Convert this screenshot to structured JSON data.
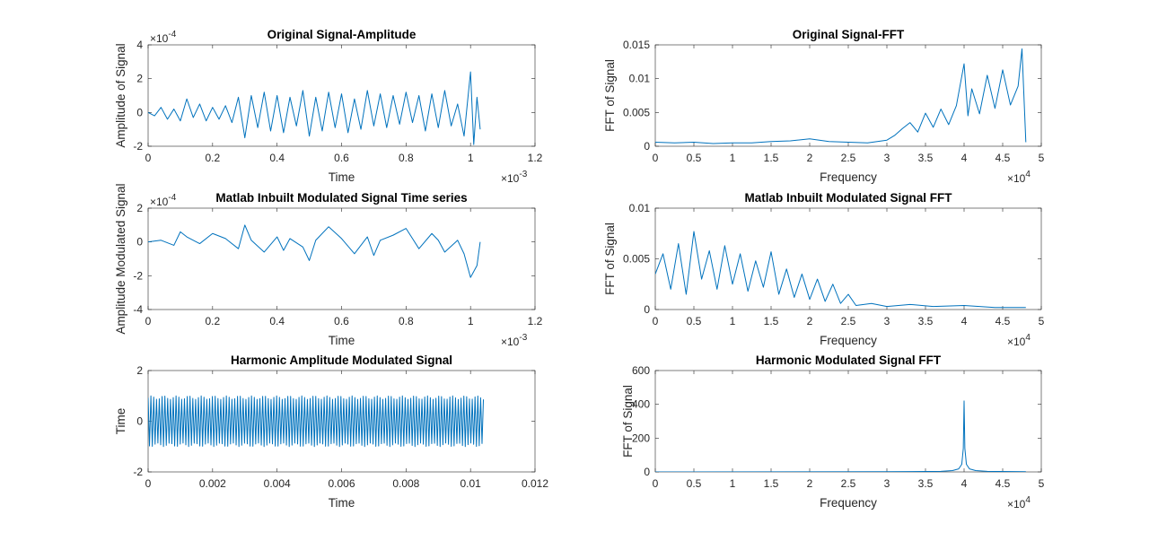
{
  "figure": {
    "background": "#ffffff",
    "line_color": "#0072BD",
    "axis_color": "#262626"
  },
  "chart_data": [
    {
      "id": "p1",
      "type": "line",
      "title": "Original Signal-Amplitude",
      "xlabel": "Time",
      "ylabel": "Amplitude of Signal",
      "xlim": [
        0,
        0.0012
      ],
      "ylim": [
        -0.0002,
        0.0004
      ],
      "xticks": [
        0,
        0.0002,
        0.0004,
        0.0006,
        0.0008,
        0.001,
        0.0012
      ],
      "xticklabels": [
        "0",
        "0.2",
        "0.4",
        "0.6",
        "0.8",
        "1",
        "1.2"
      ],
      "yticks": [
        -0.0002,
        0,
        0.0002,
        0.0004
      ],
      "yticklabels": [
        "-2",
        "0",
        "2",
        "4"
      ],
      "x_exponent": "10^-3",
      "y_exponent": "10^-4",
      "series": [
        {
          "x": [
            0,
            2e-05,
            4e-05,
            6e-05,
            8e-05,
            0.0001,
            0.00012,
            0.00014,
            0.00016,
            0.00018,
            0.0002,
            0.00022,
            0.00024,
            0.00026,
            0.00028,
            0.0003,
            0.00032,
            0.00034,
            0.00036,
            0.00038,
            0.0004,
            0.00042,
            0.00044,
            0.00046,
            0.00048,
            0.0005,
            0.00052,
            0.00054,
            0.00056,
            0.00058,
            0.0006,
            0.00062,
            0.00064,
            0.00066,
            0.00068,
            0.0007,
            0.00072,
            0.00074,
            0.00076,
            0.00078,
            0.0008,
            0.00082,
            0.00084,
            0.00086,
            0.00088,
            0.0009,
            0.00092,
            0.00094,
            0.00096,
            0.00098,
            0.001,
            0.00101,
            0.00102,
            0.00103
          ],
          "y": [
            0,
            -2e-05,
            3e-05,
            -4e-05,
            2e-05,
            -5e-05,
            8e-05,
            -3e-05,
            5e-05,
            -5e-05,
            3e-05,
            -4e-05,
            4e-05,
            -6e-05,
            9e-05,
            -0.00015,
            0.0001,
            -9e-05,
            0.00012,
            -0.00011,
            0.0001,
            -0.00012,
            9e-05,
            -8e-05,
            0.00013,
            -0.00014,
            9e-05,
            -0.00011,
            0.00012,
            -9e-05,
            0.00011,
            -0.00012,
            8e-05,
            -0.0001,
            0.00013,
            -8e-05,
            0.00011,
            -9e-05,
            0.0001,
            -7e-05,
            0.00012,
            -6e-05,
            0.0001,
            -0.00011,
            0.00011,
            -9e-05,
            0.00013,
            -8e-05,
            5e-05,
            -0.00014,
            0.00024,
            -0.00019,
            9e-05,
            -0.0001
          ]
        }
      ]
    },
    {
      "id": "p2",
      "type": "line",
      "title": "Original Signal-FFT",
      "xlabel": "Frequency",
      "ylabel": "FFT of Signal",
      "xlim": [
        0,
        50000
      ],
      "ylim": [
        0,
        0.015
      ],
      "xticks": [
        0,
        5000,
        10000,
        15000,
        20000,
        25000,
        30000,
        35000,
        40000,
        45000,
        50000
      ],
      "xticklabels": [
        "0",
        "0.5",
        "1",
        "1.5",
        "2",
        "2.5",
        "3",
        "3.5",
        "4",
        "4.5",
        "5"
      ],
      "yticks": [
        0,
        0.005,
        0.01,
        0.015
      ],
      "yticklabels": [
        "0",
        "0.005",
        "0.01",
        "0.015"
      ],
      "x_exponent": "10^4",
      "series": [
        {
          "x": [
            0,
            2500,
            5000,
            7500,
            10000,
            12500,
            15000,
            17500,
            20000,
            22500,
            25000,
            27500,
            30000,
            31000,
            32000,
            33000,
            34000,
            35000,
            36000,
            37000,
            38000,
            39000,
            40000,
            40500,
            41000,
            42000,
            43000,
            44000,
            45000,
            46000,
            47000,
            47500,
            48000
          ],
          "y": [
            0.0006,
            0.0005,
            0.0006,
            0.0004,
            0.0005,
            0.0005,
            0.0007,
            0.0008,
            0.0011,
            0.0007,
            0.0006,
            0.0005,
            0.0009,
            0.0016,
            0.0026,
            0.0035,
            0.0021,
            0.0049,
            0.0028,
            0.0055,
            0.0032,
            0.006,
            0.0122,
            0.0045,
            0.0085,
            0.0048,
            0.0105,
            0.0056,
            0.0113,
            0.0061,
            0.0089,
            0.0144,
            0.0006
          ]
        }
      ]
    },
    {
      "id": "p3",
      "type": "line",
      "title": "Matlab Inbuilt Modulated Signal Time series",
      "xlabel": "Time",
      "ylabel": "Amplitude Modulated Signal",
      "xlim": [
        0,
        0.0012
      ],
      "ylim": [
        -0.0004,
        0.0002
      ],
      "xticks": [
        0,
        0.0002,
        0.0004,
        0.0006,
        0.0008,
        0.001,
        0.0012
      ],
      "xticklabels": [
        "0",
        "0.2",
        "0.4",
        "0.6",
        "0.8",
        "1",
        "1.2"
      ],
      "yticks": [
        -0.0004,
        -0.0002,
        0,
        0.0002
      ],
      "yticklabels": [
        "-4",
        "-2",
        "0",
        "2"
      ],
      "x_exponent": "10^-3",
      "y_exponent": "10^-4",
      "series": [
        {
          "x": [
            0,
            4e-05,
            8e-05,
            0.0001,
            0.00012,
            0.00016,
            0.0002,
            0.00024,
            0.00028,
            0.0003,
            0.00032,
            0.00036,
            0.0004,
            0.00042,
            0.00044,
            0.00048,
            0.0005,
            0.00052,
            0.00056,
            0.0006,
            0.00064,
            0.00068,
            0.0007,
            0.00072,
            0.00076,
            0.0008,
            0.00082,
            0.00084,
            0.00088,
            0.0009,
            0.00092,
            0.00096,
            0.00098,
            0.001,
            0.00102,
            0.00103
          ],
          "y": [
            0,
            1e-05,
            -2e-05,
            6e-05,
            3e-05,
            -1e-05,
            5e-05,
            2e-05,
            -4e-05,
            0.0001,
            1e-05,
            -6e-05,
            3e-05,
            -5e-05,
            2e-05,
            -3e-05,
            -0.00011,
            1e-05,
            9e-05,
            2e-05,
            -7e-05,
            3e-05,
            -8e-05,
            1e-05,
            4e-05,
            8e-05,
            2e-05,
            -4e-05,
            5e-05,
            1e-05,
            -6e-05,
            1e-05,
            -7e-05,
            -0.00021,
            -0.00014,
            0
          ]
        }
      ]
    },
    {
      "id": "p4",
      "type": "line",
      "title": "Matlab Inbuilt Modulated Signal FFT",
      "xlabel": "Frequency",
      "ylabel": "FFT of Signal",
      "xlim": [
        0,
        50000
      ],
      "ylim": [
        0,
        0.01
      ],
      "xticks": [
        0,
        5000,
        10000,
        15000,
        20000,
        25000,
        30000,
        35000,
        40000,
        45000,
        50000
      ],
      "xticklabels": [
        "0",
        "0.5",
        "1",
        "1.5",
        "2",
        "2.5",
        "3",
        "3.5",
        "4",
        "4.5",
        "5"
      ],
      "yticks": [
        0,
        0.005,
        0.01
      ],
      "yticklabels": [
        "0",
        "0.005",
        "0.01"
      ],
      "x_exponent": "10^4",
      "series": [
        {
          "x": [
            0,
            1000,
            2000,
            3000,
            4000,
            5000,
            6000,
            7000,
            8000,
            9000,
            10000,
            11000,
            12000,
            13000,
            14000,
            15000,
            16000,
            17000,
            18000,
            19000,
            20000,
            21000,
            22000,
            23000,
            24000,
            25000,
            26000,
            28000,
            30000,
            33000,
            36000,
            40000,
            44000,
            48000
          ],
          "y": [
            0.0035,
            0.0055,
            0.002,
            0.0065,
            0.0015,
            0.0077,
            0.003,
            0.0058,
            0.002,
            0.0063,
            0.0025,
            0.0055,
            0.0018,
            0.0048,
            0.0022,
            0.0057,
            0.0015,
            0.004,
            0.0012,
            0.0035,
            0.001,
            0.003,
            0.0008,
            0.0025,
            0.0006,
            0.0015,
            0.0004,
            0.0006,
            0.0003,
            0.0005,
            0.0003,
            0.0004,
            0.0002,
            0.0002
          ]
        }
      ]
    },
    {
      "id": "p5",
      "type": "line",
      "title": "Harmonic Amplitude Modulated Signal",
      "xlabel": "Time",
      "ylabel": "Time",
      "xlim": [
        0,
        0.012
      ],
      "ylim": [
        -2,
        2
      ],
      "xticks": [
        0,
        0.002,
        0.004,
        0.006,
        0.008,
        0.01,
        0.012
      ],
      "xticklabels": [
        "0",
        "0.002",
        "0.004",
        "0.006",
        "0.008",
        "0.01",
        "0.012"
      ],
      "yticks": [
        -2,
        0,
        2
      ],
      "yticklabels": [
        "-2",
        "0",
        "2"
      ],
      "series": [
        {
          "x_range": [
            0,
            0.0104
          ],
          "amplitude": 1,
          "cycles": 120
        }
      ]
    },
    {
      "id": "p6",
      "type": "line",
      "title": "Harmonic Modulated Signal FFT",
      "xlabel": "Frequency",
      "ylabel": "FFT of Signal",
      "xlim": [
        0,
        50000
      ],
      "ylim": [
        0,
        600
      ],
      "xticks": [
        0,
        5000,
        10000,
        15000,
        20000,
        25000,
        30000,
        35000,
        40000,
        45000,
        50000
      ],
      "xticklabels": [
        "0",
        "0.5",
        "1",
        "1.5",
        "2",
        "2.5",
        "3",
        "3.5",
        "4",
        "4.5",
        "5"
      ],
      "yticks": [
        0,
        200,
        400,
        600
      ],
      "yticklabels": [
        "0",
        "200",
        "400",
        "600"
      ],
      "x_exponent": "10^4",
      "series": [
        {
          "x": [
            0,
            30000,
            37000,
            38500,
            39300,
            39700,
            39900,
            40000,
            40100,
            40300,
            40700,
            41500,
            43000,
            48000
          ],
          "y": [
            0,
            1,
            3,
            8,
            18,
            45,
            140,
            420,
            140,
            45,
            18,
            8,
            3,
            1
          ]
        }
      ]
    }
  ]
}
